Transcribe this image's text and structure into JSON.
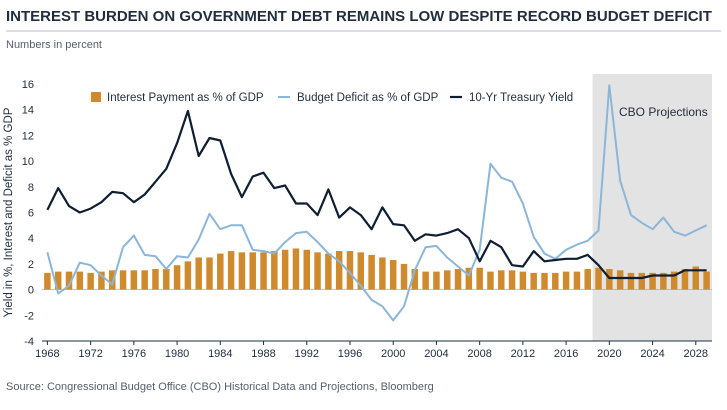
{
  "chart_data": {
    "type": "bar+line",
    "title": "INTEREST BURDEN ON GOVERNMENT DEBT REMAINS LOW DESPITE RECORD BUDGET DEFICIT",
    "subtitle": "Numbers in percent",
    "ylabel": "Yield in %, Interest and Deficit as % GDP",
    "source": "Source: Congressional Budget Office (CBO) Historical Data and Projections, Bloomberg",
    "projection_label": "CBO Projections",
    "projection_start": 2019,
    "ylim": [
      -4,
      16
    ],
    "yticks": [
      -4,
      -2,
      0,
      2,
      4,
      6,
      8,
      10,
      12,
      14,
      16
    ],
    "xlim": [
      1967.5,
      2029.5
    ],
    "xticks": [
      1968,
      1972,
      1976,
      1980,
      1984,
      1988,
      1992,
      1996,
      2000,
      2004,
      2008,
      2012,
      2016,
      2020,
      2024,
      2028
    ],
    "years": [
      1968,
      1969,
      1970,
      1971,
      1972,
      1973,
      1974,
      1975,
      1976,
      1977,
      1978,
      1979,
      1980,
      1981,
      1982,
      1983,
      1984,
      1985,
      1986,
      1987,
      1988,
      1989,
      1990,
      1991,
      1992,
      1993,
      1994,
      1995,
      1996,
      1997,
      1998,
      1999,
      2000,
      2001,
      2002,
      2003,
      2004,
      2005,
      2006,
      2007,
      2008,
      2009,
      2010,
      2011,
      2012,
      2013,
      2014,
      2015,
      2016,
      2017,
      2018,
      2019,
      2020,
      2021,
      2022,
      2023,
      2024,
      2025,
      2026,
      2027,
      2028,
      2029
    ],
    "series": [
      {
        "name": "Interest Payment as % of GDP",
        "kind": "bar",
        "color": "#d08a2e",
        "values": [
          1.3,
          1.4,
          1.4,
          1.4,
          1.3,
          1.4,
          1.5,
          1.5,
          1.5,
          1.5,
          1.6,
          1.6,
          1.9,
          2.2,
          2.5,
          2.5,
          2.8,
          3.0,
          2.9,
          2.9,
          2.9,
          3.0,
          3.1,
          3.2,
          3.1,
          2.9,
          2.8,
          3.0,
          3.0,
          2.9,
          2.7,
          2.5,
          2.3,
          2.0,
          1.6,
          1.4,
          1.4,
          1.5,
          1.6,
          1.7,
          1.7,
          1.4,
          1.5,
          1.5,
          1.4,
          1.3,
          1.3,
          1.3,
          1.4,
          1.4,
          1.6,
          1.7,
          1.6,
          1.5,
          1.3,
          1.3,
          1.3,
          1.3,
          1.4,
          1.6,
          1.8,
          1.4
        ]
      },
      {
        "name": "Budget Deficit as % of GDP",
        "kind": "line",
        "color": "#8bb6d9",
        "values": [
          2.9,
          -0.3,
          0.3,
          2.1,
          1.9,
          1.1,
          0.4,
          3.3,
          4.2,
          2.7,
          2.6,
          1.6,
          2.6,
          2.5,
          3.9,
          5.9,
          4.7,
          5.0,
          5.0,
          3.1,
          3.0,
          2.8,
          3.7,
          4.4,
          4.5,
          3.7,
          2.8,
          2.2,
          1.3,
          0.3,
          -0.8,
          -1.3,
          -2.4,
          -1.3,
          1.5,
          3.3,
          3.4,
          2.5,
          1.8,
          1.1,
          3.1,
          9.8,
          8.7,
          8.4,
          6.7,
          4.1,
          2.8,
          2.4,
          3.1,
          3.5,
          3.8,
          4.6,
          15.9,
          8.5,
          5.8,
          5.2,
          4.7,
          5.6,
          4.5,
          4.2,
          4.6,
          5.0
        ]
      },
      {
        "name": "10-Yr Treasury Yield",
        "kind": "line",
        "color": "#0f1e33",
        "values": [
          6.2,
          7.9,
          6.5,
          6.0,
          6.3,
          6.8,
          7.6,
          7.5,
          6.8,
          7.4,
          8.4,
          9.4,
          11.4,
          13.9,
          10.4,
          11.8,
          11.6,
          9.0,
          7.2,
          8.8,
          9.1,
          7.9,
          8.1,
          6.7,
          6.7,
          5.8,
          7.8,
          5.6,
          6.4,
          5.8,
          4.7,
          6.4,
          5.1,
          5.0,
          3.8,
          4.3,
          4.2,
          4.4,
          4.7,
          4.0,
          2.2,
          3.8,
          3.3,
          1.9,
          1.8,
          3.0,
          2.2,
          2.3,
          2.4,
          2.4,
          2.7,
          1.9,
          0.9,
          0.9,
          0.9,
          0.9,
          1.1,
          1.1,
          1.1,
          1.5,
          1.5,
          1.5
        ]
      }
    ],
    "legend": [
      "Interest Payment as % of GDP",
      "Budget Deficit as % of GDP",
      "10-Yr Treasury Yield"
    ],
    "grid": false
  },
  "colors": {
    "projection_band": "#e3e3e3",
    "axis": "#1f2d3d"
  }
}
